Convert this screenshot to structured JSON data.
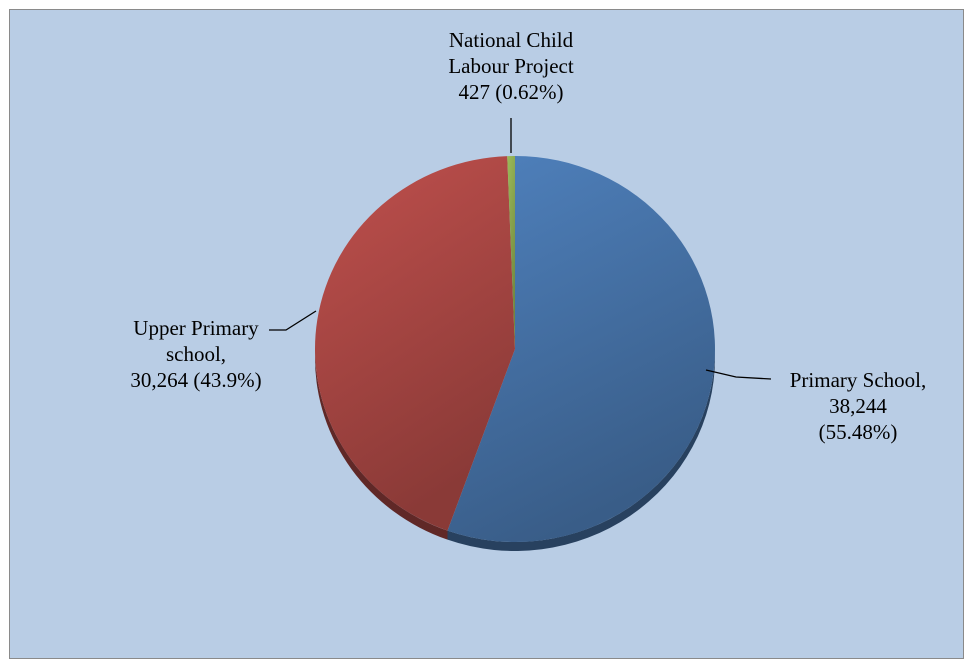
{
  "colors": {
    "background": "#b9cde5",
    "primary": "#4f81bd",
    "upper_primary": "#c0504d",
    "nclp": "#9bbb59",
    "leader": "#000000"
  },
  "chart_data": {
    "type": "pie",
    "title": "",
    "legend": "none",
    "slices": [
      {
        "category": "Primary School",
        "value": 38244,
        "percent": 55.48,
        "label_lines": [
          "Primary School,",
          "38,244",
          "(55.48%)"
        ],
        "color": "#4f81bd"
      },
      {
        "category": "Upper Primary school",
        "value": 30264,
        "percent": 43.9,
        "label_lines": [
          "Upper Primary",
          "school,",
          "30,264 (43.9%)"
        ],
        "color": "#c0504d"
      },
      {
        "category": "National Child Labour Project",
        "value": 427,
        "percent": 0.62,
        "label_lines": [
          "National Child",
          "Labour Project",
          "427 (0.62%)"
        ],
        "color": "#9bbb59"
      }
    ]
  }
}
